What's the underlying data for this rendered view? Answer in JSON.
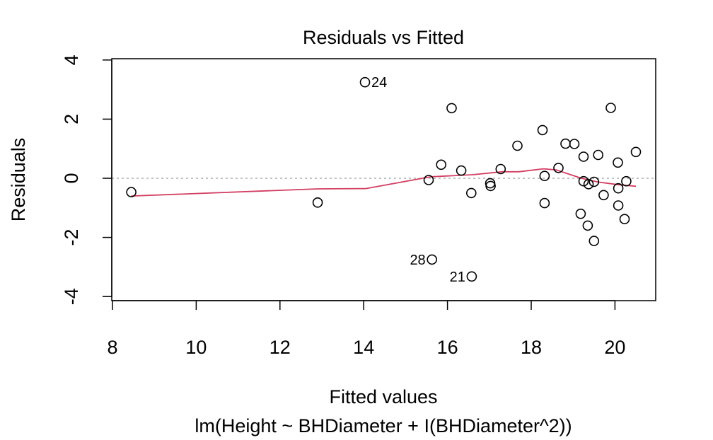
{
  "chart_data": {
    "type": "scatter",
    "title": "Residuals vs Fitted",
    "xlabel": "Fitted values",
    "ylabel": "Residuals",
    "subtitle": "lm(Height ~ BHDiameter + I(BHDiameter^2))",
    "xlim": [
      8,
      21
    ],
    "ylim": [
      -4,
      4
    ],
    "xticks": [
      8,
      10,
      12,
      14,
      16,
      18,
      20
    ],
    "yticks": [
      -4,
      -2,
      0,
      2,
      4
    ],
    "grid": false,
    "reference_line": {
      "y": 0,
      "style": "dotted",
      "color": "#9e9e9e"
    },
    "points": [
      {
        "x": 8.45,
        "y": -0.47
      },
      {
        "x": 12.9,
        "y": -0.82
      },
      {
        "x": 14.03,
        "y": 3.25,
        "label": "24"
      },
      {
        "x": 15.55,
        "y": -0.06
      },
      {
        "x": 15.63,
        "y": -2.75,
        "label": "28"
      },
      {
        "x": 15.85,
        "y": 0.46
      },
      {
        "x": 16.1,
        "y": 2.37
      },
      {
        "x": 16.33,
        "y": 0.26
      },
      {
        "x": 16.57,
        "y": -0.5
      },
      {
        "x": 16.58,
        "y": -3.32,
        "label": "21"
      },
      {
        "x": 17.02,
        "y": -0.17
      },
      {
        "x": 17.03,
        "y": -0.26
      },
      {
        "x": 17.27,
        "y": 0.31
      },
      {
        "x": 17.67,
        "y": 1.1
      },
      {
        "x": 18.27,
        "y": 1.63
      },
      {
        "x": 18.32,
        "y": 0.08
      },
      {
        "x": 18.32,
        "y": -0.84
      },
      {
        "x": 18.65,
        "y": 0.35
      },
      {
        "x": 18.82,
        "y": 1.17
      },
      {
        "x": 19.03,
        "y": 1.16
      },
      {
        "x": 19.18,
        "y": -1.2
      },
      {
        "x": 19.25,
        "y": 0.73
      },
      {
        "x": 19.25,
        "y": -0.1
      },
      {
        "x": 19.35,
        "y": -1.6
      },
      {
        "x": 19.37,
        "y": -0.2
      },
      {
        "x": 19.5,
        "y": -2.12
      },
      {
        "x": 19.5,
        "y": -0.12
      },
      {
        "x": 19.6,
        "y": 0.79
      },
      {
        "x": 19.73,
        "y": -0.57
      },
      {
        "x": 19.9,
        "y": 2.38
      },
      {
        "x": 20.07,
        "y": 0.53
      },
      {
        "x": 20.08,
        "y": -0.34
      },
      {
        "x": 20.08,
        "y": -0.92
      },
      {
        "x": 20.23,
        "y": -1.38
      },
      {
        "x": 20.27,
        "y": -0.1
      },
      {
        "x": 20.5,
        "y": 0.89
      }
    ],
    "smooth_line": {
      "color": "#d23e62",
      "points": [
        [
          8.45,
          -0.6
        ],
        [
          12.9,
          -0.36
        ],
        [
          14.05,
          -0.35
        ],
        [
          15.6,
          0.05
        ],
        [
          16.6,
          0.12
        ],
        [
          17.3,
          0.22
        ],
        [
          17.7,
          0.22
        ],
        [
          18.3,
          0.32
        ],
        [
          18.6,
          0.28
        ],
        [
          19.2,
          0.0
        ],
        [
          19.6,
          -0.13
        ],
        [
          20.1,
          -0.22
        ],
        [
          20.5,
          -0.27
        ]
      ]
    }
  }
}
